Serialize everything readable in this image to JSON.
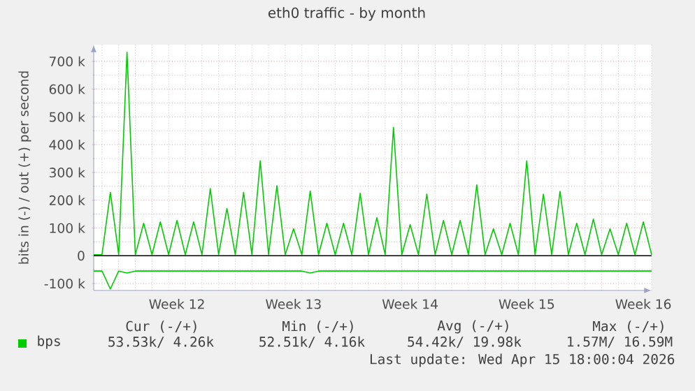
{
  "chart_data": {
    "type": "line",
    "title": "eth0 traffic - by month",
    "ylabel": "bits in (-) / out (+) per second",
    "categories": [
      null,
      null,
      null,
      null,
      null,
      null,
      null,
      null,
      null,
      null,
      "Week 12",
      null,
      null,
      null,
      null,
      null,
      null,
      null,
      null,
      null,
      null,
      null,
      null,
      null,
      "Week 13",
      null,
      null,
      null,
      null,
      null,
      null,
      null,
      null,
      null,
      null,
      null,
      null,
      null,
      "Week 14",
      null,
      null,
      null,
      null,
      null,
      null,
      null,
      null,
      null,
      null,
      null,
      null,
      null,
      "Week 15",
      null,
      null,
      null,
      null,
      null,
      null,
      null,
      null,
      null,
      null,
      null,
      null,
      null,
      "Week 16",
      null
    ],
    "ylim": [
      -125000,
      760000
    ],
    "yticks": [
      {
        "value": -100000,
        "label": "-100 k"
      },
      {
        "value": 0,
        "label": "0"
      },
      {
        "value": 100000,
        "label": "100 k"
      },
      {
        "value": 200000,
        "label": "200 k"
      },
      {
        "value": 300000,
        "label": "300 k"
      },
      {
        "value": 400000,
        "label": "400 k"
      },
      {
        "value": 500000,
        "label": "500 k"
      },
      {
        "value": 600000,
        "label": "600 k"
      },
      {
        "value": 700000,
        "label": "700 k"
      }
    ],
    "grid": true,
    "legend": "bottom",
    "marker": "none",
    "line_style": "solid",
    "ref_lines": [
      {
        "axis": "y",
        "value": 0,
        "color": "#000000"
      }
    ],
    "series": [
      {
        "name": "bps",
        "color": "#00cc00",
        "values": [
          4000,
          4000,
          228000,
          4000,
          733000,
          4000,
          117000,
          4000,
          122000,
          4000,
          127000,
          4000,
          122000,
          4000,
          242000,
          4000,
          170000,
          4000,
          228000,
          4000,
          342000,
          4000,
          252000,
          4000,
          97000,
          4000,
          233000,
          4000,
          117000,
          4000,
          117000,
          4000,
          225000,
          4000,
          137000,
          4000,
          462000,
          4000,
          112000,
          4000,
          222000,
          4000,
          127000,
          4000,
          127000,
          4000,
          255000,
          4000,
          97000,
          4000,
          117000,
          4000,
          342000,
          4000,
          222000,
          4000,
          232000,
          4000,
          117000,
          4000,
          132000,
          4000,
          97000,
          4000,
          117000,
          4000,
          122000,
          4000
        ]
      },
      {
        "color": "#00cc00",
        "values": [
          -55000,
          -55000,
          -120000,
          -55000,
          -62000,
          -55000,
          -55000,
          -55000,
          -55000,
          -55000,
          -55000,
          -55000,
          -55000,
          -55000,
          -55000,
          -55000,
          -55000,
          -55000,
          -55000,
          -55000,
          -55000,
          -55000,
          -55000,
          -55000,
          -55000,
          -55000,
          -62000,
          -55000,
          -55000,
          -55000,
          -55000,
          -55000,
          -55000,
          -55000,
          -55000,
          -55000,
          -55000,
          -55000,
          -55000,
          -55000,
          -55000,
          -55000,
          -55000,
          -55000,
          -55000,
          -55000,
          -55000,
          -55000,
          -55000,
          -55000,
          -55000,
          -55000,
          -55000,
          -55000,
          -55000,
          -55000,
          -55000,
          -55000,
          -55000,
          -55000,
          -55000,
          -55000,
          -55000,
          -55000,
          -55000,
          -55000,
          -55000,
          -55000
        ]
      }
    ],
    "annotations": [
      "Cur (-/+)",
      "Min (-/+)",
      "Avg (-/+)",
      "Max (-/+)",
      "53.53k/ 4.26k",
      "52.51k/ 4.16k",
      "54.42k/ 19.98k",
      "1.57M/ 16.59M",
      "Last update: Wed Apr 15 18:00:04 2026"
    ]
  }
}
